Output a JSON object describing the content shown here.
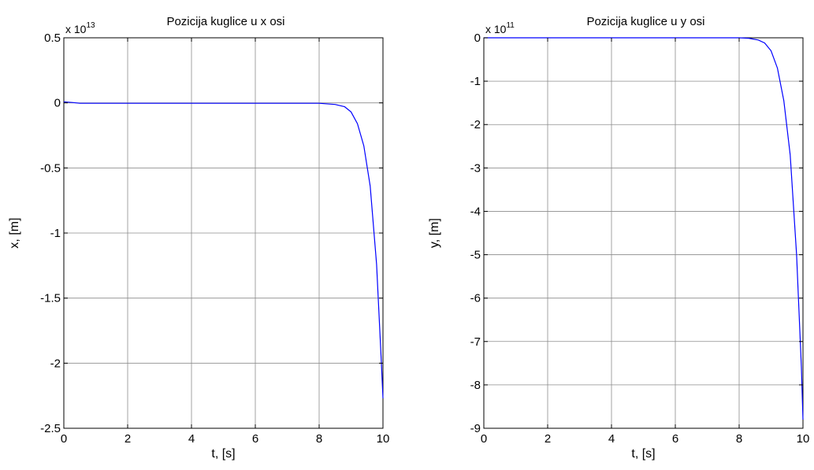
{
  "chart_data": [
    {
      "type": "line",
      "title": "Pozicija kuglice u x osi",
      "xlabel": "t, [s]",
      "ylabel": "x, [m]",
      "multiplier_base": "x 10",
      "multiplier_exp": "13",
      "xlim": [
        0,
        10
      ],
      "ylim": [
        -2.5,
        0.5
      ],
      "xticks": [
        0,
        2,
        4,
        6,
        8,
        10
      ],
      "xtick_labels": [
        "0",
        "2",
        "4",
        "6",
        "8",
        "10"
      ],
      "yticks": [
        0.5,
        0,
        -0.5,
        -1,
        -1.5,
        -2,
        -2.5
      ],
      "ytick_labels": [
        "0.5",
        "0",
        "-0.5",
        "-1",
        "-1.5",
        "-2",
        "-2.5"
      ],
      "grid": true,
      "series": [
        {
          "color": "#0000ff",
          "x": [
            0,
            0.3,
            0.5,
            1,
            2,
            4,
            6,
            7,
            8,
            8.5,
            8.8,
            9.0,
            9.2,
            9.4,
            9.6,
            9.8,
            9.95,
            10
          ],
          "y": [
            0.008,
            0.002,
            -0.003,
            -0.003,
            -0.003,
            -0.003,
            -0.003,
            -0.003,
            -0.003,
            -0.012,
            -0.03,
            -0.07,
            -0.16,
            -0.33,
            -0.64,
            -1.24,
            -2.0,
            -2.27
          ]
        }
      ]
    },
    {
      "type": "line",
      "title": "Pozicija kuglice u y osi",
      "xlabel": "t, [s]",
      "ylabel": "y, [m]",
      "multiplier_base": "x 10",
      "multiplier_exp": "11",
      "xlim": [
        0,
        10
      ],
      "ylim": [
        -9,
        0
      ],
      "xticks": [
        0,
        2,
        4,
        6,
        8,
        10
      ],
      "xtick_labels": [
        "0",
        "2",
        "4",
        "6",
        "8",
        "10"
      ],
      "yticks": [
        0,
        -1,
        -2,
        -3,
        -4,
        -5,
        -6,
        -7,
        -8,
        -9
      ],
      "ytick_labels": [
        "0",
        "-1",
        "-2",
        "-3",
        "-4",
        "-5",
        "-6",
        "-7",
        "-8",
        "-9"
      ],
      "grid": true,
      "series": [
        {
          "color": "#0000ff",
          "x": [
            0,
            2,
            4,
            6,
            7,
            8,
            8.3,
            8.6,
            8.8,
            9.0,
            9.2,
            9.4,
            9.6,
            9.8,
            9.95,
            10
          ],
          "y": [
            0,
            0,
            0,
            0,
            0,
            0,
            -0.01,
            -0.05,
            -0.12,
            -0.3,
            -0.7,
            -1.45,
            -2.7,
            -5.0,
            -7.6,
            -8.8
          ]
        }
      ]
    }
  ]
}
